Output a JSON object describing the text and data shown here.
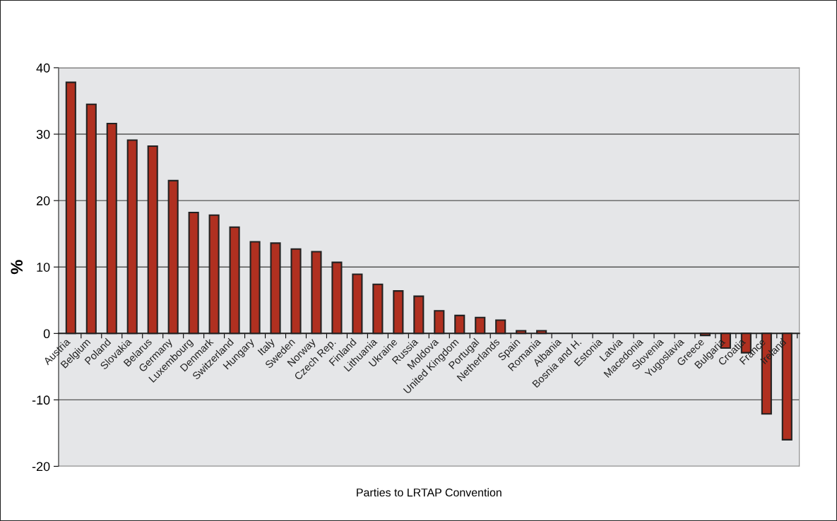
{
  "chart_data": {
    "type": "bar",
    "xlabel": "Parties to LRTAP Convention",
    "ylabel": "%",
    "categories": [
      "Austria",
      "Belgium",
      "Poland",
      "Slovakia",
      "Belarus",
      "Germany",
      "Luxembourg",
      "Denmark",
      "Switzerland",
      "Hungary",
      "Italy",
      "Sweden",
      "Norway",
      "Czech Rep.",
      "Finland",
      "Lithuania",
      "Ukraine",
      "Russia",
      "Moldova",
      "United Kingdom",
      "Portugal",
      "Netherlands",
      "Spain",
      "Romania",
      "Albania",
      "Bosnia and H.",
      "Estonia",
      "Latvia",
      "Macedonia",
      "Slovenia",
      "Yugoslavia",
      "Greece",
      "Bulgaria",
      "Croatia",
      "France",
      "Ireland"
    ],
    "values": [
      37.8,
      34.5,
      31.6,
      29.1,
      28.2,
      23.0,
      18.2,
      17.8,
      16.0,
      13.8,
      13.6,
      12.7,
      12.3,
      10.7,
      8.9,
      7.4,
      6.4,
      5.6,
      3.4,
      2.7,
      2.4,
      2.0,
      0.4,
      0.4,
      0,
      0,
      0,
      0,
      0,
      0,
      0,
      -0.3,
      -2.2,
      -2.9,
      -12.1,
      -16.0
    ],
    "color": "#b03020",
    "ylim": [
      -20,
      40
    ],
    "yticks": [
      -20,
      -10,
      0,
      10,
      20,
      30,
      40
    ],
    "grid": "y",
    "legend": false
  }
}
